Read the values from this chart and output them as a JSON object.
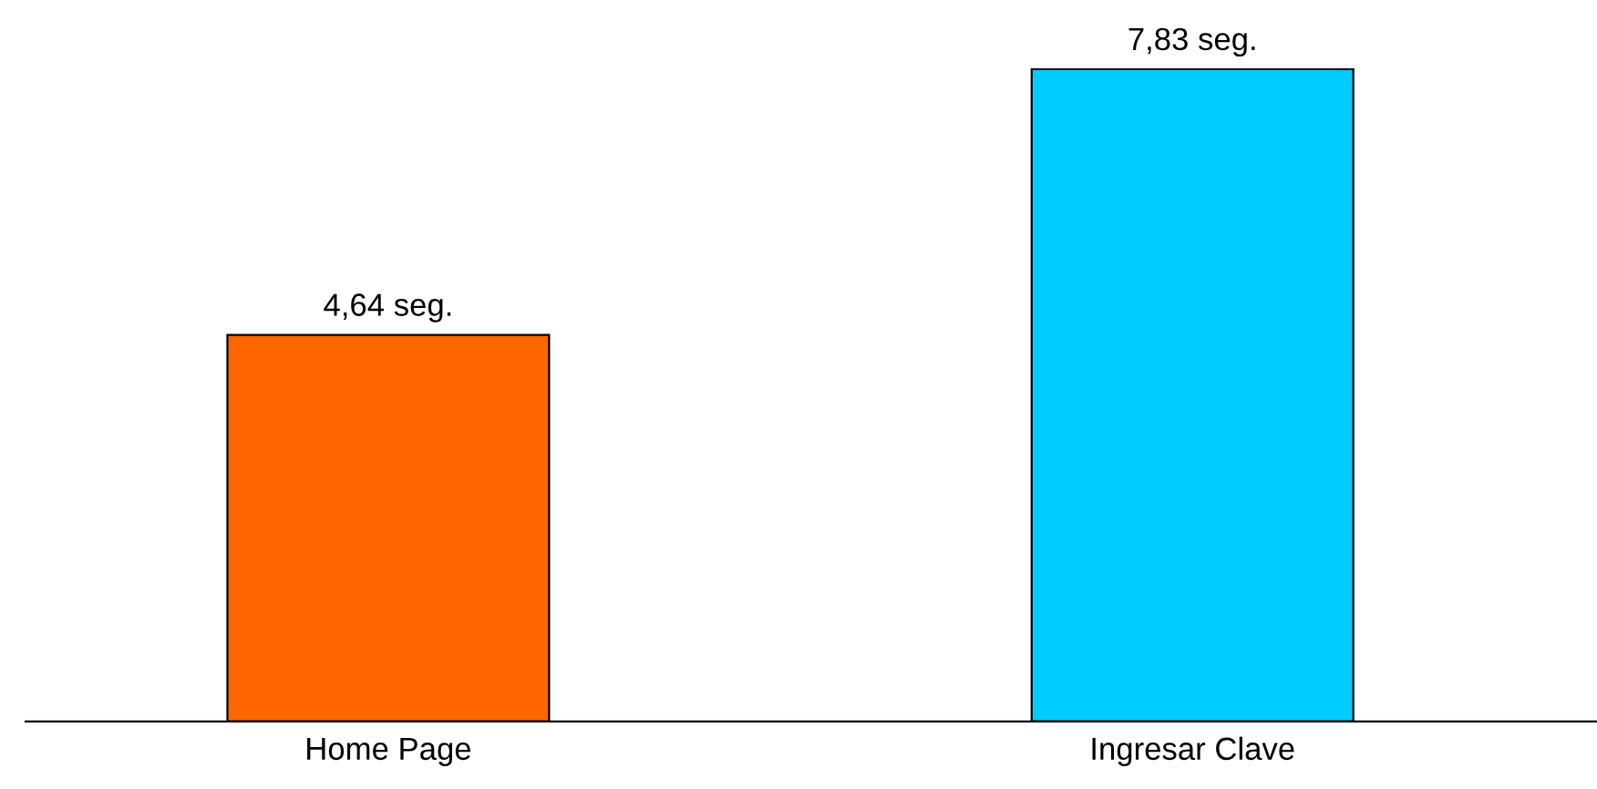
{
  "chart_data": {
    "type": "bar",
    "categories": [
      "Home Page",
      "Ingresar Clave"
    ],
    "values": [
      4.64,
      7.83
    ],
    "colors": [
      "#ff6600",
      "#00ccff"
    ],
    "value_labels": [
      "4,64 seg.",
      "7,83 seg."
    ],
    "grid": false,
    "legend": false
  }
}
